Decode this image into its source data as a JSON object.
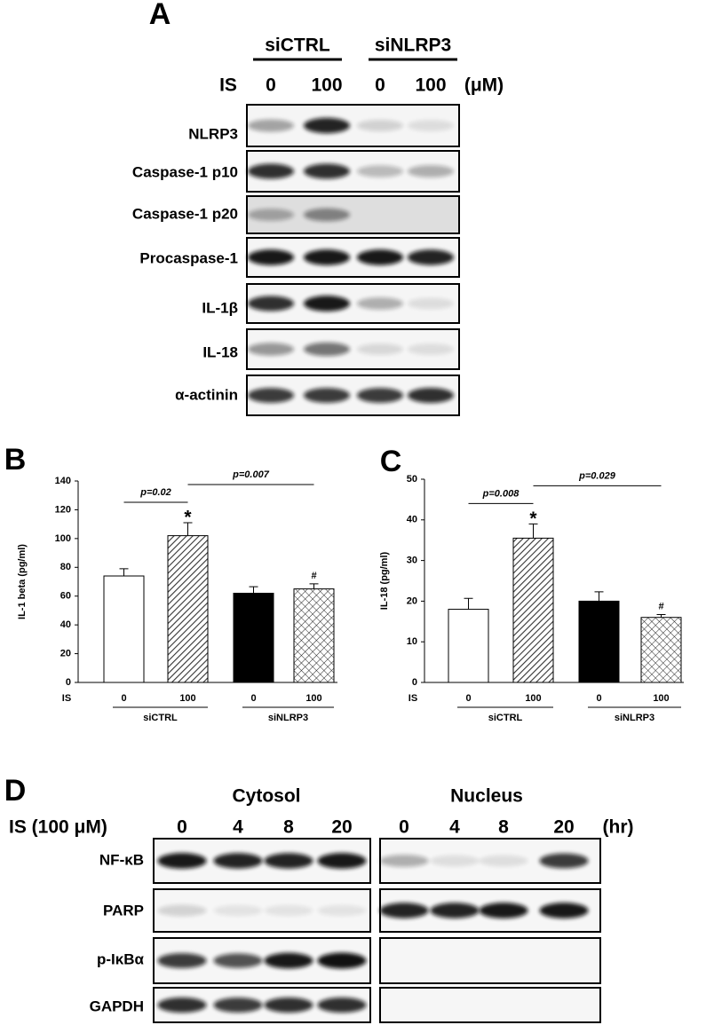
{
  "panel_a": {
    "label": "A",
    "treatment": "IS",
    "unit": "(μM)",
    "groups": [
      {
        "name": "siCTRL",
        "doses": [
          "0",
          "100"
        ]
      },
      {
        "name": "siNLRP3",
        "doses": [
          "0",
          "100"
        ]
      }
    ],
    "blots": [
      "NLRP3",
      "Caspase-1 p10",
      "Caspase-1 p20",
      "Procaspase-1",
      "IL-1β",
      "IL-18",
      "α-actinin"
    ]
  },
  "chart_data": [
    {
      "type": "bar",
      "label": "B",
      "y_label": "IL-1 beta (pg/ml)",
      "x_prefix": "IS",
      "categories": [
        "0",
        "100",
        "0",
        "100"
      ],
      "groups": [
        "siCTRL",
        "siNLRP3"
      ],
      "values": [
        74,
        102,
        62,
        65
      ],
      "errors": [
        5,
        9,
        4.5,
        3.5
      ],
      "fills": [
        "white",
        "hatch",
        "black",
        "crosshatch"
      ],
      "ylim": [
        0,
        140
      ],
      "yticks": [
        0,
        20,
        40,
        60,
        80,
        100,
        120,
        140
      ],
      "annotations": [
        "p=0.02",
        "p=0.007",
        "*",
        "#"
      ]
    },
    {
      "type": "bar",
      "label": "C",
      "y_label": "IL-18 (pg/ml)",
      "x_prefix": "IS",
      "categories": [
        "0",
        "100",
        "0",
        "100"
      ],
      "groups": [
        "siCTRL",
        "siNLRP3"
      ],
      "values": [
        18,
        35.5,
        20,
        16
      ],
      "errors": [
        2.7,
        3.5,
        2.3,
        0.7
      ],
      "fills": [
        "white",
        "hatch",
        "black",
        "crosshatch"
      ],
      "ylim": [
        0,
        50
      ],
      "yticks": [
        0,
        10,
        20,
        30,
        40,
        50
      ],
      "annotations": [
        "p=0.008",
        "p=0.029",
        "*",
        "#"
      ]
    }
  ],
  "panel_d": {
    "label": "D",
    "treatment": "IS (100 μM)",
    "unit": "(hr)",
    "fractions": [
      {
        "name": "Cytosol",
        "times": [
          "0",
          "4",
          "8",
          "20"
        ]
      },
      {
        "name": "Nucleus",
        "times": [
          "0",
          "4",
          "8",
          "20"
        ]
      }
    ],
    "blots": [
      "NF-κB",
      "PARP",
      "p-IκBα",
      "GAPDH"
    ]
  }
}
